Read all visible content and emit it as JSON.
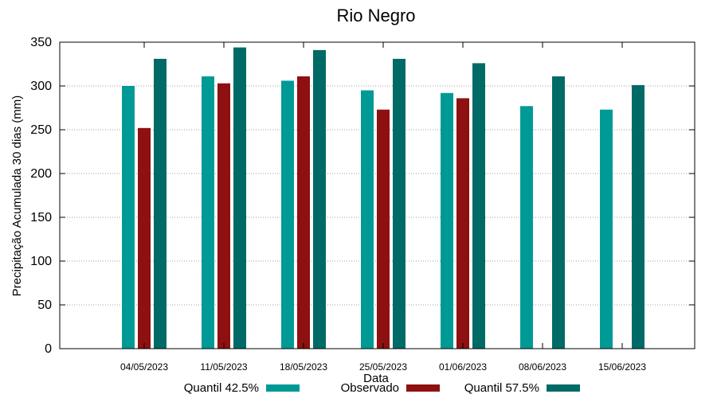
{
  "chart_data": {
    "type": "bar",
    "title": "Rio Negro",
    "xlabel": "Data",
    "ylabel": "Precipitação Acumulada 30 dias (mm)",
    "ylim": [
      0,
      350
    ],
    "yticks": [
      0,
      50,
      100,
      150,
      200,
      250,
      300,
      350
    ],
    "grid": true,
    "legend_position": "bottom",
    "categories": [
      "04/05/2023",
      "11/05/2023",
      "18/05/2023",
      "25/05/2023",
      "01/06/2023",
      "08/06/2023",
      "15/06/2023"
    ],
    "series": [
      {
        "name": "Quantil 42.5%",
        "color": "#009a96",
        "values": [
          300,
          311,
          306,
          295,
          292,
          277,
          273
        ]
      },
      {
        "name": "Observado",
        "color": "#8f1010",
        "values": [
          252,
          303,
          311,
          273,
          286,
          null,
          null
        ]
      },
      {
        "name": "Quantil 57.5%",
        "color": "#006a66",
        "values": [
          331,
          344,
          341,
          331,
          326,
          311,
          301
        ]
      }
    ]
  }
}
